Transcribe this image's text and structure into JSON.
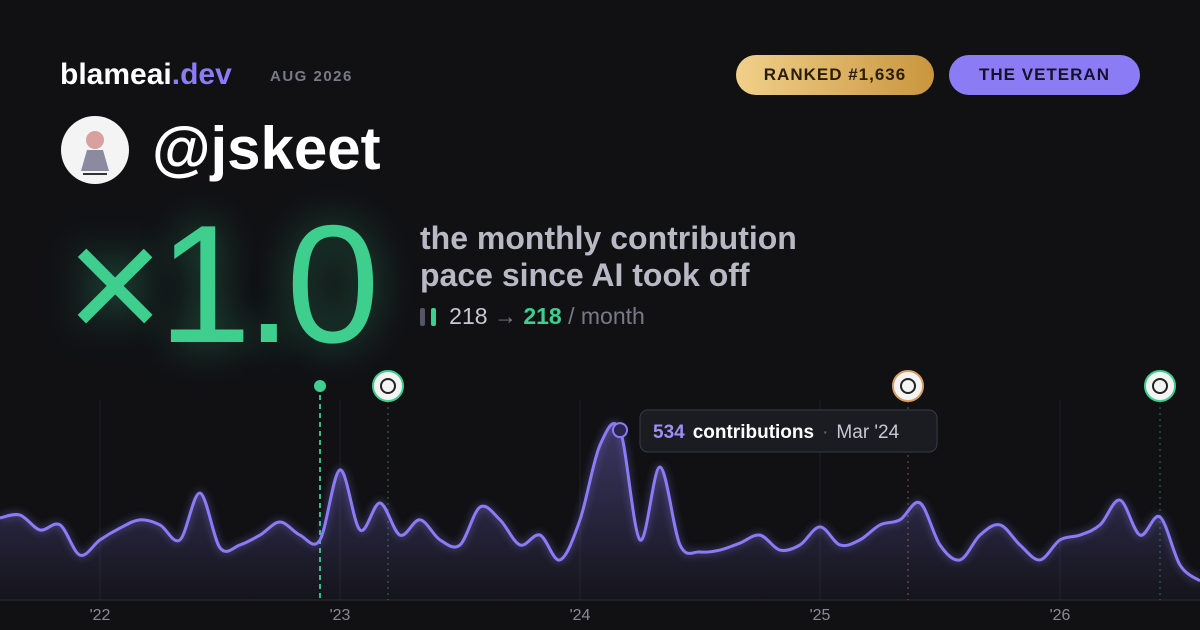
{
  "header": {
    "brand": "blameai",
    "brand_suffix": ".dev",
    "date": "AUG 2026",
    "rank_badge": "RANKED #1,636",
    "title_badge": "THE VETERAN"
  },
  "profile": {
    "handle": "@jskeet"
  },
  "headline": {
    "multiplier": "×1.0",
    "line1": "the monthly contribution",
    "line2": "pace since AI took off",
    "before": "218",
    "arrow": "→",
    "after": "218",
    "unit": "/ month"
  },
  "chart": {
    "type": "line",
    "color": "#8b7cf6",
    "x": [
      -5,
      -4,
      -3,
      -2,
      -1,
      0,
      1,
      2,
      3,
      4,
      5,
      6,
      7,
      8,
      9,
      10,
      11,
      12,
      13,
      14,
      15,
      16,
      17,
      18,
      19,
      20,
      21,
      22,
      23,
      24,
      25,
      26,
      27,
      28,
      29,
      30,
      31,
      32,
      33,
      34,
      35,
      36,
      37,
      38,
      39,
      40,
      41,
      42,
      43,
      44,
      45,
      46,
      47,
      48,
      49,
      50,
      51,
      52,
      53,
      54,
      55
    ],
    "values": [
      258,
      267,
      220,
      236,
      141,
      189,
      226,
      252,
      236,
      189,
      336,
      164,
      173,
      204,
      245,
      204,
      189,
      409,
      220,
      305,
      204,
      252,
      189,
      173,
      292,
      252,
      173,
      204,
      126,
      252,
      487,
      534,
      189,
      418,
      173,
      151,
      157,
      179,
      204,
      157,
      173,
      230,
      173,
      189,
      236,
      252,
      305,
      173,
      126,
      204,
      236,
      173,
      126,
      189,
      204,
      236,
      314,
      204,
      261,
      110,
      60
    ],
    "xlim": [
      -5,
      55
    ],
    "ylim": [
      0,
      550
    ],
    "xticks": [
      {
        "value": 0,
        "label": "'22"
      },
      {
        "value": 12,
        "label": "'23"
      },
      {
        "value": 24,
        "label": "'24"
      },
      {
        "value": 36,
        "label": "'25"
      },
      {
        "value": 48,
        "label": "'26"
      }
    ],
    "tooltip": {
      "index": 31,
      "value_label": "534",
      "text": "contributions",
      "sep": "·",
      "date": "Mar '24"
    },
    "events": [
      {
        "x": 11,
        "color": "#3ecf8e"
      },
      {
        "x": 14.4,
        "color": "#3ecf8e"
      },
      {
        "x": 40.4,
        "color": "#d9a066"
      },
      {
        "x": 53,
        "color": "#3ecf8e"
      }
    ]
  }
}
